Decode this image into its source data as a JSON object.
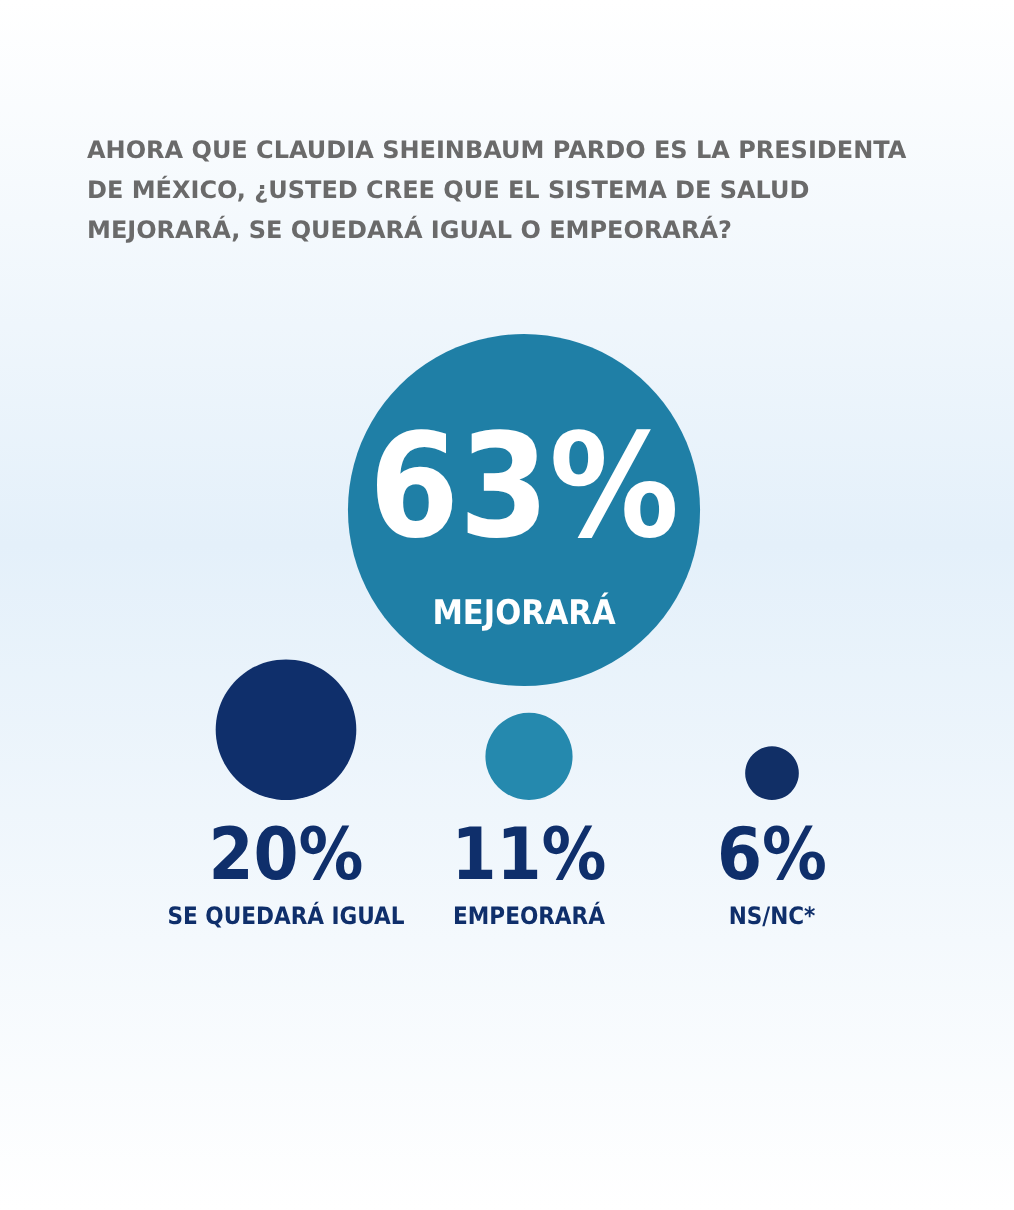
{
  "chart_data": {
    "type": "other",
    "title": "AHORA QUE CLAUDIA SHEINBAUM PARDO ES LA PRESIDENTA DE MÉXICO, ¿USTED CREE QUE EL SISTEMA DE SALUD MEJORARÁ, SE QUEDARÁ IGUAL O EMPEORARÁ?",
    "categories": [
      "MEJORARÁ",
      "SE QUEDARÁ IGUAL",
      "EMPEORARÁ",
      "NS/NC*"
    ],
    "values": [
      63,
      20,
      11,
      6
    ],
    "value_labels": [
      "63%",
      "20%",
      "11%",
      "6%"
    ],
    "colors": [
      "#1f7fa6",
      "#0f2f6b",
      "#2589ae",
      "#112f66"
    ]
  }
}
